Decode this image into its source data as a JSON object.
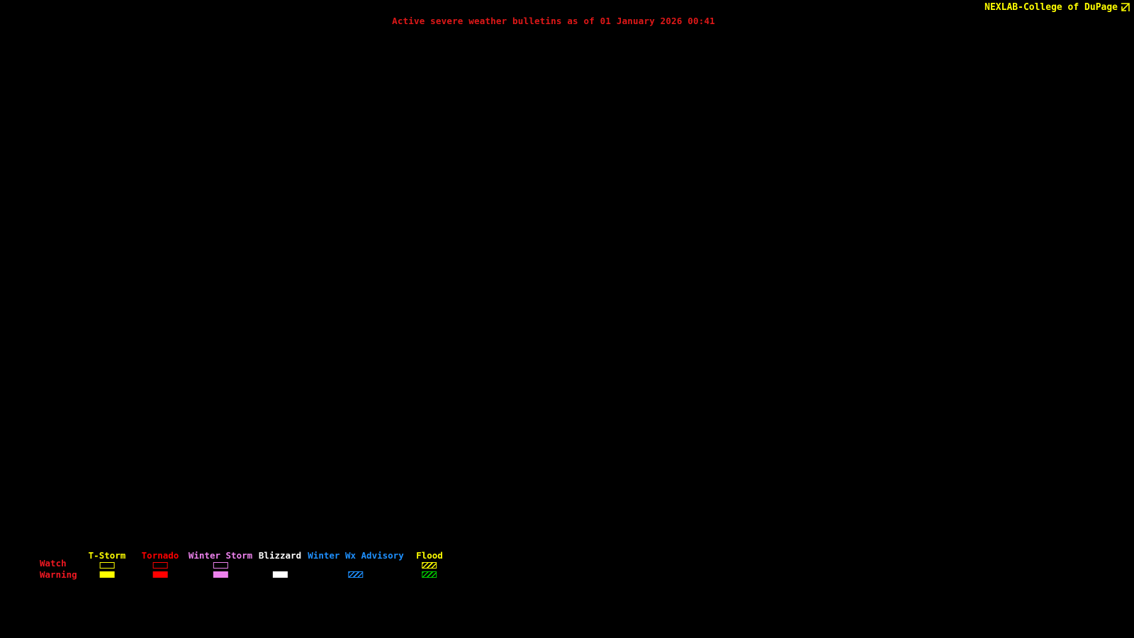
{
  "header": {
    "brand": "NEXLAB-College of DuPage",
    "brand_color": "#FFFF00",
    "logo_icon": "corner-arrow-icon"
  },
  "title": {
    "text": "Active severe weather bulletins as of 01 January 2026 00:41",
    "color": "#E01818"
  },
  "map": {
    "background_color": "#000000",
    "active_bulletins_plotted": "none"
  },
  "legend": {
    "watch_label": "Watch",
    "warning_label": "Warning",
    "row_label_color": "#F01822",
    "swatch_styles": [
      "outline = watch box",
      "fill = warning box",
      "hatch = diagonal striped box"
    ],
    "columns": [
      {
        "label": "T-Storm",
        "label_color": "#FFFF00",
        "watch": {
          "style": "outline",
          "color": "#FFFF00"
        },
        "warning": {
          "style": "fill",
          "color": "#FFFF00"
        }
      },
      {
        "label": "Tornado",
        "label_color": "#FF0000",
        "watch": {
          "style": "outline",
          "color": "#FF0000"
        },
        "warning": {
          "style": "fill",
          "color": "#FF0000"
        }
      },
      {
        "label": "Winter Storm",
        "label_color": "#EE82EE",
        "watch": {
          "style": "outline",
          "color": "#EE82EE"
        },
        "warning": {
          "style": "fill",
          "color": "#EE82EE"
        }
      },
      {
        "label": "Blizzard",
        "label_color": "#FFFFFF",
        "watch": null,
        "warning": {
          "style": "fill",
          "color": "#FFFFFF"
        }
      },
      {
        "label": "Winter Wx Advisory",
        "label_color": "#1E90FF",
        "watch": null,
        "warning": {
          "style": "hatch",
          "color": "#1E90FF"
        }
      },
      {
        "label": "Flood",
        "label_color": "#FFFF00",
        "watch": {
          "style": "hatch",
          "color": "#FFFF00"
        },
        "warning": {
          "style": "hatch",
          "color": "#00CD00"
        }
      }
    ]
  }
}
